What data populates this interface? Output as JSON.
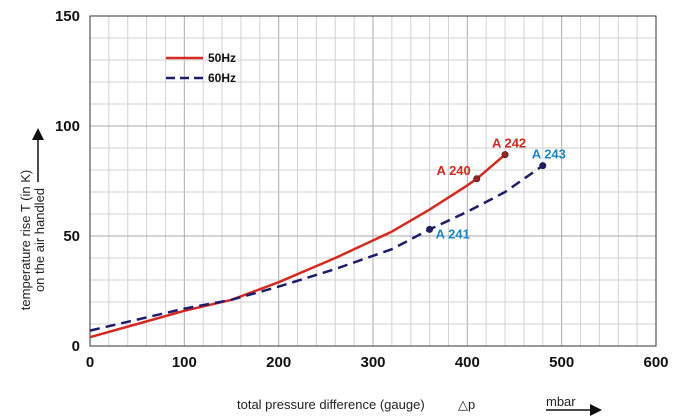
{
  "chart_data": {
    "type": "line",
    "xlabel": "total pressure difference (gauge)",
    "xlabel_symbol": "△p",
    "xunit": "mbar",
    "ylabel_line1": "temperature rise T (in K)",
    "ylabel_line2": "on the air handled",
    "xlim": [
      0,
      600
    ],
    "ylim": [
      0,
      150
    ],
    "x_ticks": [
      0,
      100,
      200,
      300,
      400,
      500,
      600
    ],
    "y_ticks": [
      0,
      50,
      100,
      150
    ],
    "x_tick_labels": [
      "0",
      "100",
      "200",
      "300",
      "400",
      "500",
      "600"
    ],
    "y_tick_labels": [
      "0",
      "50",
      "100",
      "150"
    ],
    "grid": true,
    "legend_position": "top-left",
    "series": [
      {
        "name": "50Hz",
        "color": "#d42a22",
        "style": "solid",
        "x": [
          0,
          50,
          100,
          150,
          200,
          260,
          320,
          360,
          400,
          410,
          440
        ],
        "y": [
          4,
          10,
          16,
          21,
          29,
          40,
          52,
          62,
          73,
          76,
          87
        ]
      },
      {
        "name": "60Hz",
        "color": "#1d1d6b",
        "style": "dashed",
        "x": [
          0,
          50,
          100,
          150,
          200,
          260,
          320,
          360,
          400,
          440,
          480
        ],
        "y": [
          7,
          12,
          17,
          21,
          27,
          35,
          44,
          53,
          61,
          70,
          82
        ]
      }
    ],
    "annotations": [
      {
        "label": "A 240",
        "x": 410,
        "y": 76,
        "color": "#d42a22",
        "point_color": "#a32020",
        "anchor": "left"
      },
      {
        "label": "A 242",
        "x": 440,
        "y": 87,
        "color": "#d42a22",
        "point_color": "#a32020",
        "anchor": "above"
      },
      {
        "label": "A 241",
        "x": 360,
        "y": 53,
        "color": "#1d87c0",
        "point_color": "#1d1d6b",
        "anchor": "right"
      },
      {
        "label": "A 243",
        "x": 480,
        "y": 82,
        "color": "#1d87c0",
        "point_color": "#1d1d6b",
        "anchor": "above-right"
      }
    ]
  }
}
